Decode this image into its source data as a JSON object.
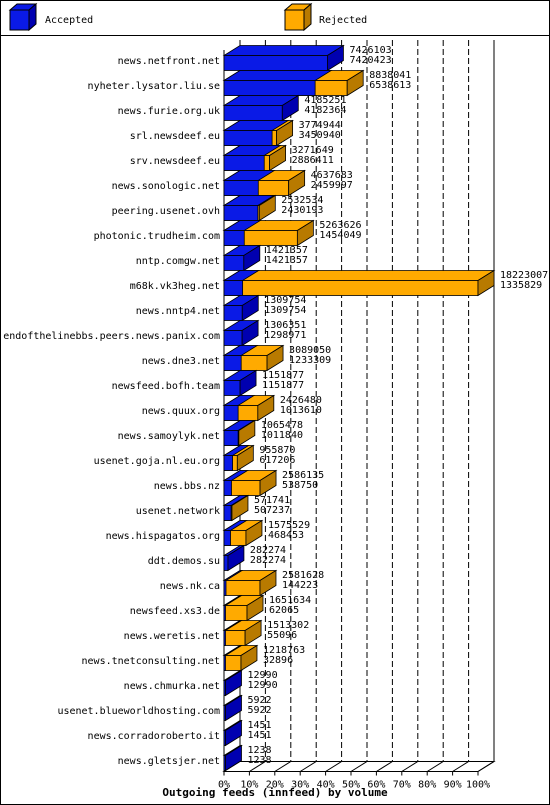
{
  "chart_data": {
    "type": "bar",
    "title": "Outgoing feeds (innfeed) by volume",
    "legend": [
      {
        "name": "Accepted",
        "color": "#0a1ae6",
        "side": "#0000b0"
      },
      {
        "name": "Rejected",
        "color": "#ffaa00",
        "side": "#b87a00"
      }
    ],
    "xticks": [
      "0%",
      "10%",
      "20%",
      "30%",
      "40%",
      "50%",
      "60%",
      "70%",
      "80%",
      "90%",
      "100%"
    ],
    "xlim": [
      0,
      18223007
    ],
    "categories": [
      "news.netfront.net",
      "nyheter.lysator.liu.se",
      "news.furie.org.uk",
      "srl.newsdeef.eu",
      "srv.newsdeef.eu",
      "news.sonologic.net",
      "peering.usenet.ovh",
      "photonic.trudheim.com",
      "nntp.comgw.net",
      "m68k.vk3heg.net",
      "news.nntp4.net",
      "endofthelinebbs.peers.news.panix.com",
      "news.dne3.net",
      "newsfeed.bofh.team",
      "news.quux.org",
      "news.samoylyk.net",
      "usenet.goja.nl.eu.org",
      "news.bbs.nz",
      "usenet.network",
      "news.hispagatos.org",
      "ddt.demos.su",
      "news.nk.ca",
      "newsfeed.xs3.de",
      "news.weretis.net",
      "news.tnetconsulting.net",
      "news.chmurka.net",
      "usenet.blueworldhosting.com",
      "news.corradoroberto.it",
      "news.gletsjer.net"
    ],
    "totals": [
      7426103,
      8838041,
      4185251,
      3774944,
      3271649,
      4637683,
      2532534,
      5263626,
      1421357,
      18223007,
      1309754,
      1306351,
      3089050,
      1151877,
      2426480,
      1065478,
      955870,
      2586135,
      571741,
      1575529,
      282274,
      2581628,
      1651634,
      1513302,
      1218763,
      12990,
      5922,
      1451,
      1238
    ],
    "accepted": [
      7420423,
      6538613,
      4182364,
      3450940,
      2886411,
      2459997,
      2430193,
      1454049,
      1421357,
      1335829,
      1309754,
      1298971,
      1233309,
      1151877,
      1013610,
      1011840,
      617206,
      538750,
      507237,
      468453,
      282274,
      144223,
      62065,
      55096,
      32896,
      12990,
      5922,
      1451,
      1238
    ]
  }
}
